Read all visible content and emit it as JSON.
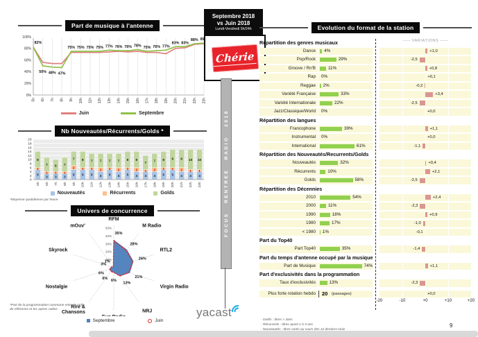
{
  "page": {
    "number": "9"
  },
  "center": {
    "period": {
      "line1": "Septembre 2018",
      "line2": "vs Juin 2018",
      "line3": "Lundi-Vendredi 5h/24h"
    },
    "brand": "Chérie",
    "ribbon": "FOCUS RENTREE RADIO 2018",
    "vendor": "yacast"
  },
  "chart_data": [
    {
      "id": "music_share",
      "type": "line",
      "title": "Part de musique à l'antenne",
      "x": [
        "5h",
        "6h",
        "7h",
        "8h",
        "9h",
        "10h",
        "11h",
        "12h",
        "13h",
        "14h",
        "15h",
        "16h",
        "17h",
        "18h",
        "19h",
        "20h",
        "21h",
        "22h",
        "23h"
      ],
      "ylim": [
        0,
        100
      ],
      "yticks": [
        0,
        20,
        40,
        60,
        80,
        100
      ],
      "ytick_labels": [
        "0%",
        "20%",
        "40%",
        "60%",
        "80%",
        "100%"
      ],
      "series": [
        {
          "name": "Juin",
          "color": "#e0807f",
          "values": [
            82,
            56,
            54,
            54,
            73,
            73,
            73,
            73,
            74,
            75,
            74,
            75,
            73,
            73,
            71,
            80,
            81,
            87,
            88
          ]
        },
        {
          "name": "Septembre",
          "color": "#8fc148",
          "values": [
            82,
            50,
            48,
            47,
            75,
            75,
            75,
            75,
            77,
            76,
            76,
            78,
            75,
            76,
            77,
            83,
            83,
            88,
            89
          ]
        }
      ],
      "point_labels": [
        "82%",
        "50%",
        "48%",
        "47%",
        "75%",
        "75%",
        "75%",
        "75%",
        "77%",
        "76%",
        "76%",
        "78%",
        "75%",
        "76%",
        "77%",
        "83%",
        "83%",
        "88%",
        "89%"
      ]
    },
    {
      "id": "rotation",
      "type": "stacked-bar",
      "title": "Nb Nouveautés/Récurrents/Golds *",
      "footnote": "*Moyenne quotidienne par heure",
      "categories": [
        "5h",
        "6h",
        "7h",
        "8h",
        "9h",
        "10h",
        "11h",
        "12h",
        "13h",
        "14h",
        "15h",
        "16h",
        "17h",
        "18h",
        "19h",
        "20h",
        "21h",
        "22h",
        "23h"
      ],
      "ylim": [
        0,
        20
      ],
      "ytick_step": 2,
      "series": [
        {
          "name": "Nouveautés",
          "color": "#a8c3e5",
          "label_color": "#1f1f1f",
          "values": [
            5,
            3,
            3,
            3,
            5,
            5,
            5,
            4,
            5,
            4,
            5,
            4,
            4,
            4,
            5,
            5,
            4,
            4,
            4
          ]
        },
        {
          "name": "Récurrents",
          "color": "#fcc08d",
          "label_color": "#c00000",
          "values": [
            1,
            1,
            1,
            1,
            2,
            1,
            1,
            2,
            1,
            2,
            1,
            2,
            1,
            2,
            1,
            1,
            2,
            1,
            1
          ]
        },
        {
          "name": "Golds",
          "color": "#c1d69f",
          "label_color": "#1f1f1f",
          "values": [
            8,
            7,
            6,
            7,
            7,
            8,
            7,
            7,
            7,
            7,
            8,
            8,
            7,
            7,
            8,
            9,
            9,
            10,
            10
          ]
        }
      ]
    },
    {
      "id": "competition",
      "type": "radar",
      "title": "Univers de concurrence",
      "footnote": "*Part de la programmation commune entre la radio de référence et les autres radios",
      "axes": [
        "RFM",
        "M Radio",
        "RTL2",
        "Virgin Radio",
        "NRJ",
        "Fun Radio",
        "Rire & Chansons",
        "Nostalgie",
        "Skyrock",
        "mOuv'"
      ],
      "value_labels": [
        "35%",
        "28%",
        "26%",
        "21%",
        "13%",
        "6%",
        "6%",
        "6%",
        "3%",
        "1%"
      ],
      "rmax": 50,
      "rticks": [
        10,
        20,
        30,
        40,
        50
      ],
      "rtick_labels": [
        "10%",
        "20%",
        "30%",
        "40%",
        "50%"
      ],
      "series": [
        {
          "name": "Septembre",
          "color": "#4f81bd",
          "values": [
            35,
            28,
            26,
            21,
            13,
            6,
            6,
            6,
            3,
            1
          ]
        },
        {
          "name": "Juin",
          "color": "#e8232a",
          "values": [
            34,
            27,
            25,
            20,
            13,
            6,
            6,
            5,
            3,
            1
          ]
        }
      ]
    }
  ],
  "format_panel": {
    "title": "Evolution du format de la station",
    "variations_label": "VARIATIONS",
    "variations_dashes": "------",
    "axis_ticks": [
      "-20",
      "-10",
      "+0",
      "+10",
      "+20"
    ],
    "axis_range": [
      -20,
      20
    ],
    "bar_color": "#92d050",
    "var_color": "#d99694",
    "sections": [
      {
        "header": "Répartition des genres musicaux",
        "rows": [
          {
            "label": "Dance",
            "pct": 4,
            "pct_label": "4%",
            "variation": 1.0,
            "var_label": "+1,0"
          },
          {
            "label": "Pop/Rock",
            "pct": 29,
            "pct_label": "29%",
            "variation": -2.5,
            "var_label": "-2,5"
          },
          {
            "label": "Groove / Rn'B",
            "pct": 11,
            "pct_label": "11%",
            "variation": 0.8,
            "var_label": "+0,8"
          },
          {
            "label": "Rap",
            "pct": 0,
            "pct_label": "0%",
            "variation": 0.1,
            "var_label": "+0,1"
          },
          {
            "label": "Reggae",
            "pct": 2,
            "pct_label": "2%",
            "variation": -0.2,
            "var_label": "-0,2"
          },
          {
            "label": "Variété Française",
            "pct": 33,
            "pct_label": "33%",
            "variation": 3.4,
            "var_label": "+3,4"
          },
          {
            "label": "Variété Internationale",
            "pct": 22,
            "pct_label": "22%",
            "variation": -2.5,
            "var_label": "-2,5"
          },
          {
            "label": "Jazz/Classique/World",
            "pct": 0,
            "pct_label": "0%",
            "variation": 0.0,
            "var_label": "+0,0"
          }
        ]
      },
      {
        "header": "Répartition des langues",
        "rows": [
          {
            "label": "Francophone",
            "pct": 39,
            "pct_label": "39%",
            "variation": 1.1,
            "var_label": "+1,1"
          },
          {
            "label": "Instrumental",
            "pct": 0,
            "pct_label": "0%",
            "variation": 0.0,
            "var_label": "+0,0"
          },
          {
            "label": "International",
            "pct": 61,
            "pct_label": "61%",
            "variation": -1.1,
            "var_label": "-1,1"
          }
        ]
      },
      {
        "header": "Répartition des Nouveautés/Recurrents/Golds",
        "rows": [
          {
            "label": "Nouveautés",
            "pct": 32,
            "pct_label": "32%",
            "variation": 0.4,
            "var_label": "+0,4"
          },
          {
            "label": "Récurrents",
            "pct": 10,
            "pct_label": "10%",
            "variation": 2.1,
            "var_label": "+2,1"
          },
          {
            "label": "Golds",
            "pct": 58,
            "pct_label": "58%",
            "variation": -2.5,
            "var_label": "-2,5"
          }
        ]
      },
      {
        "header": "Répartition des Décennies",
        "rows": [
          {
            "label": "2010",
            "pct": 54,
            "pct_label": "54%",
            "variation": 2.4,
            "var_label": "+2,4"
          },
          {
            "label": "2000",
            "pct": 11,
            "pct_label": "11%",
            "variation": -2.3,
            "var_label": "-2,3"
          },
          {
            "label": "1990",
            "pct": 18,
            "pct_label": "18%",
            "variation": 0.9,
            "var_label": "+0,9"
          },
          {
            "label": "1980",
            "pct": 17,
            "pct_label": "17%",
            "variation": -1.0,
            "var_label": "-1,0"
          },
          {
            "label": "< 1980",
            "pct": 1,
            "pct_label": "1%",
            "variation": -0.1,
            "var_label": "-0,1"
          }
        ]
      },
      {
        "header": "Part du Top40",
        "rows": [
          {
            "label": "Part Top40",
            "pct": 35,
            "pct_label": "35%",
            "variation": -1.4,
            "var_label": "-1,4"
          }
        ]
      },
      {
        "header": "Part du temps d'antenne occupé par la musique",
        "rows": [
          {
            "label": "Part de Musique",
            "pct": 74,
            "pct_label": "74%",
            "variation": 1.1,
            "var_label": "+1,1"
          }
        ]
      },
      {
        "header": "Part d'exclusivités dans la programmation",
        "rows": [
          {
            "label": "Taux d'exclusivités",
            "pct": 13,
            "pct_label": "13%",
            "variation": -2.3,
            "var_label": "-2,3"
          }
        ]
      }
    ],
    "special_row": {
      "label": "Plus forte rotation hebdo",
      "value": "20",
      "unit": "(passages)",
      "variation": 0.0,
      "var_label": "+0,0"
    },
    "footnotes": [
      "- Golds : titres > 3ans",
      "- Récurrents : titres ayant 1 à 3 ans",
      "- Nouveautés : titres sortis au cours des 12 derniers mois"
    ]
  }
}
